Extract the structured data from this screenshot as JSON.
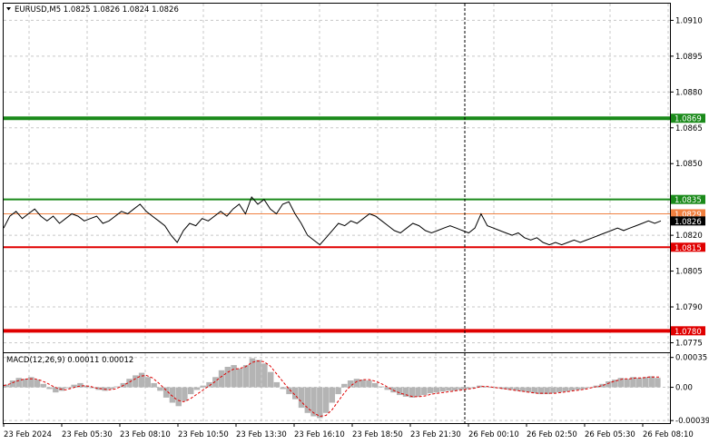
{
  "symbol_title": "EURUSD,M5  1.0825 1.0826 1.0824 1.0826",
  "colors": {
    "background": "#ffffff",
    "grid": "#c8c8c8",
    "price_line": "#000000",
    "green_level": "#1a8a1a",
    "red_level": "#e00000",
    "orange_level": "#f08040",
    "current_tag": "#000000",
    "histogram": "#b4b4b4",
    "signal": "#e00000"
  },
  "main_chart": {
    "price_axis_ticks": [
      "1.0910",
      "1.0895",
      "1.0880",
      "1.0865",
      "1.0850",
      "1.0835",
      "1.0820",
      "1.0805",
      "1.0790",
      "1.0775"
    ],
    "price_axis_values": [
      1.091,
      1.0895,
      1.088,
      1.0865,
      1.085,
      1.0835,
      1.082,
      1.0805,
      1.079,
      1.0775
    ],
    "levels": [
      {
        "value": 1.0869,
        "label": "1.0869",
        "color": "#1a8a1a",
        "width": 4
      },
      {
        "value": 1.0835,
        "label": "1.0835",
        "color": "#1a8a1a",
        "width": 2
      },
      {
        "value": 1.0829,
        "label": "1.0829",
        "color": "#f08040",
        "width": 1
      },
      {
        "value": 1.0815,
        "label": "1.0815",
        "color": "#e00000",
        "width": 2
      },
      {
        "value": 1.078,
        "label": "1.0780",
        "color": "#e00000",
        "width": 4
      }
    ],
    "current_price": {
      "value": 1.0826,
      "label": "1.0826"
    }
  },
  "chart_data": {
    "type": "line",
    "title": "EURUSD,M5  1.0825 1.0826 1.0824 1.0826",
    "x_labels": [
      "23 Feb 2024",
      "23 Feb 05:30",
      "23 Feb 08:10",
      "23 Feb 10:50",
      "23 Feb 13:30",
      "23 Feb 16:10",
      "23 Feb 18:50",
      "23 Feb 21:30",
      "26 Feb 00:10",
      "26 Feb 02:50",
      "26 Feb 05:30",
      "26 Feb 08:10"
    ],
    "ylim": [
      1.0771,
      1.0917
    ],
    "series": [
      {
        "values": [
          1.0823,
          1.0828,
          1.083,
          1.0827,
          1.0829,
          1.0831,
          1.0828,
          1.0826,
          1.0828,
          1.0825,
          1.0827,
          1.0829,
          1.0828,
          1.0826,
          1.0827,
          1.0828,
          1.0825,
          1.0826,
          1.0828,
          1.083,
          1.0829,
          1.0831,
          1.0833,
          1.083,
          1.0828,
          1.0826,
          1.0824,
          1.082,
          1.0817,
          1.0822,
          1.0825,
          1.0824,
          1.0827,
          1.0826,
          1.0828,
          1.083,
          1.0828,
          1.0831,
          1.0833,
          1.0829,
          1.0836,
          1.0833,
          1.0835,
          1.0831,
          1.0829,
          1.0833,
          1.0834,
          1.0829,
          1.0825,
          1.082,
          1.0818,
          1.0816,
          1.0819,
          1.0822,
          1.0825,
          1.0824,
          1.0826,
          1.0825,
          1.0827,
          1.0829,
          1.0828,
          1.0826,
          1.0824,
          1.0822,
          1.0821,
          1.0823,
          1.0825,
          1.0824,
          1.0822,
          1.0821,
          1.0822,
          1.0823,
          1.0824,
          1.0823,
          1.0822,
          1.0821,
          1.0823,
          1.0829,
          1.0824,
          1.0823,
          1.0822,
          1.0821,
          1.082,
          1.0821,
          1.0819,
          1.0818,
          1.0819,
          1.0817,
          1.0816,
          1.0817,
          1.0816,
          1.0817,
          1.0818,
          1.0817,
          1.0818,
          1.0819,
          1.082,
          1.0821,
          1.0822,
          1.0823,
          1.0822,
          1.0823,
          1.0824,
          1.0825,
          1.0826,
          1.0825,
          1.0826
        ]
      }
    ]
  },
  "macd": {
    "title": "MACD(12,26,9) 0.00011 0.00012",
    "axis_ticks": [
      "0.00035",
      "0.00",
      "-0.00039"
    ],
    "axis_values": [
      0.00035,
      0.0,
      -0.00039
    ],
    "ylim": [
      -0.00042,
      0.0004
    ],
    "histogram": [
      3e-05,
      8e-05,
      0.00011,
      0.0001,
      0.00012,
      9e-05,
      4e-05,
      -2e-05,
      -6e-05,
      -4e-05,
      -1e-05,
      3e-05,
      5e-05,
      2e-05,
      -1e-05,
      -3e-05,
      -4e-05,
      -2e-05,
      1e-05,
      5e-05,
      0.0001,
      0.00014,
      0.00017,
      0.00012,
      5e-05,
      -4e-05,
      -0.00012,
      -0.00018,
      -0.00022,
      -0.00016,
      -8e-05,
      -3e-05,
      2e-05,
      6e-05,
      0.00012,
      0.0002,
      0.00024,
      0.00026,
      0.00022,
      0.00026,
      0.00034,
      0.00032,
      0.00028,
      0.00018,
      6e-05,
      -2e-05,
      -8e-05,
      -0.00014,
      -0.00024,
      -0.0003,
      -0.00034,
      -0.00036,
      -0.0003,
      -0.00018,
      -8e-05,
      4e-05,
      8e-05,
      0.0001,
      9e-05,
      8e-05,
      5e-05,
      1e-05,
      -3e-05,
      -6e-05,
      -9e-05,
      -0.00011,
      -0.00012,
      -0.00011,
      -9e-05,
      -7e-05,
      -6e-05,
      -5e-05,
      -4e-05,
      -4e-05,
      -3e-05,
      -2e-05,
      -1e-05,
      2e-05,
      1e-05,
      0.0,
      -1e-05,
      -2e-05,
      -3e-05,
      -4e-05,
      -5e-05,
      -6e-05,
      -7e-05,
      -8e-05,
      -8e-05,
      -7e-05,
      -6e-05,
      -5e-05,
      -4e-05,
      -3e-05,
      -2e-05,
      0.0,
      2e-05,
      4e-05,
      7e-05,
      9e-05,
      0.00011,
      0.0001,
      0.00012,
      0.00011,
      0.00012,
      0.00013,
      0.00011
    ],
    "signal": [
      2e-05,
      4e-05,
      7e-05,
      9e-05,
      0.0001,
      0.0001,
      8e-05,
      5e-05,
      1e-05,
      -2e-05,
      -3e-05,
      -1e-05,
      1e-05,
      2e-05,
      1e-05,
      -1e-05,
      -2e-05,
      -3e-05,
      -2e-05,
      1e-05,
      5e-05,
      9e-05,
      0.00013,
      0.00014,
      0.00011,
      5e-05,
      -2e-05,
      -9e-05,
      -0.00015,
      -0.00017,
      -0.00014,
      -9e-05,
      -4e-05,
      1e-05,
      6e-05,
      0.00012,
      0.00017,
      0.00021,
      0.00022,
      0.00024,
      0.00029,
      0.00031,
      0.0003,
      0.00025,
      0.00016,
      7e-05,
      -2e-05,
      -9e-05,
      -0.00017,
      -0.00024,
      -0.0003,
      -0.00034,
      -0.00033,
      -0.00026,
      -0.00016,
      -6e-05,
      2e-05,
      7e-05,
      9e-05,
      9e-05,
      7e-05,
      4e-05,
      0.0,
      -4e-05,
      -7e-05,
      -9e-05,
      -0.00011,
      -0.00011,
      -0.0001,
      -8e-05,
      -7e-05,
      -6e-05,
      -5e-05,
      -4e-05,
      -3e-05,
      -2e-05,
      -1e-05,
      1e-05,
      1e-05,
      0.0,
      -1e-05,
      -2e-05,
      -3e-05,
      -4e-05,
      -5e-05,
      -6e-05,
      -7e-05,
      -7e-05,
      -7e-05,
      -7e-05,
      -6e-05,
      -5e-05,
      -4e-05,
      -3e-05,
      -2e-05,
      0.0,
      1e-05,
      3e-05,
      6e-05,
      8e-05,
      0.0001,
      0.0001,
      0.00011,
      0.00011,
      0.00012,
      0.00012,
      0.00012
    ]
  }
}
